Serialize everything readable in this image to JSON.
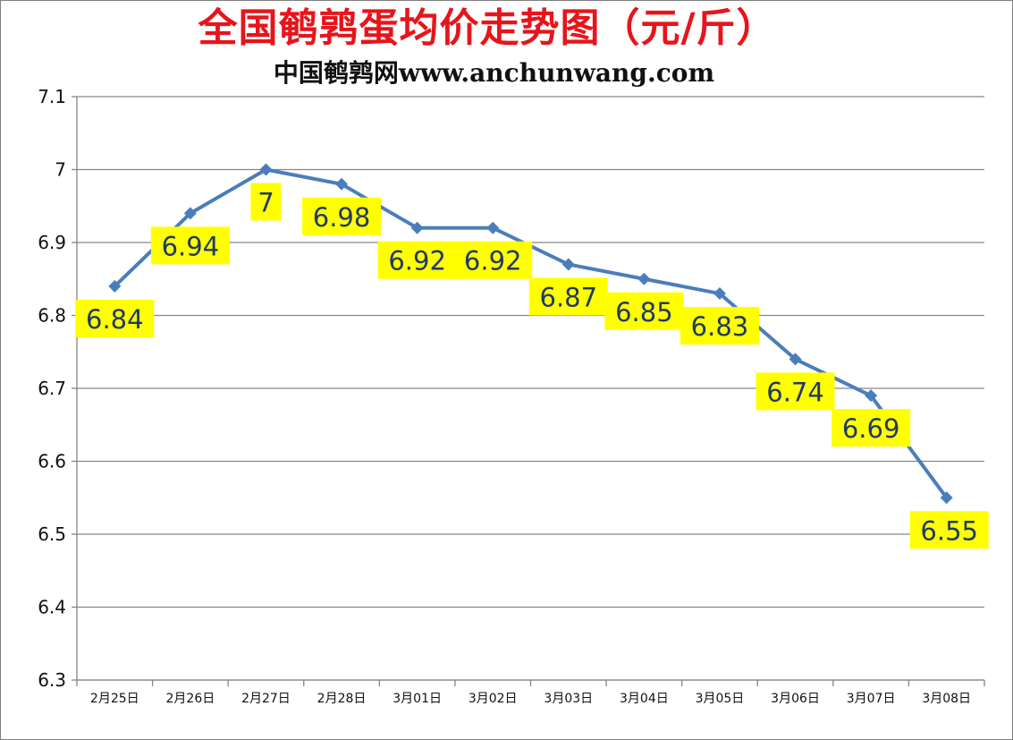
{
  "title": "全国鹌鹑蛋均价走势图（元/斤）",
  "subtitle": "中国鹌鹑网www.anchunwang.com",
  "colors": {
    "title": "#e8141b",
    "line": "#4a7ebb",
    "label_bg": "#ffff00",
    "label_text": "#1f3a66",
    "grid": "#868686"
  },
  "chart_data": {
    "type": "line",
    "categories": [
      "2月25日",
      "2月26日",
      "2月27日",
      "2月28日",
      "3月01日",
      "3月02日",
      "3月03日",
      "3月04日",
      "3月05日",
      "3月06日",
      "3月07日",
      "3月08日"
    ],
    "series": [
      {
        "values": [
          6.84,
          6.94,
          7,
          6.98,
          6.92,
          6.92,
          6.87,
          6.85,
          6.83,
          6.74,
          6.69,
          6.55
        ]
      }
    ],
    "data_labels": [
      "6.84",
      "6.94",
      "7",
      "6.98",
      "6.92",
      "6.92",
      "6.87",
      "6.85",
      "6.83",
      "6.74",
      "6.69",
      "6.55"
    ],
    "yticks": [
      "6.3",
      "6.4",
      "6.5",
      "6.6",
      "6.7",
      "6.8",
      "6.9",
      "7",
      "7.1"
    ],
    "ylim": [
      6.3,
      7.1
    ],
    "grid": true,
    "legend": "none",
    "marker": "diamond"
  }
}
